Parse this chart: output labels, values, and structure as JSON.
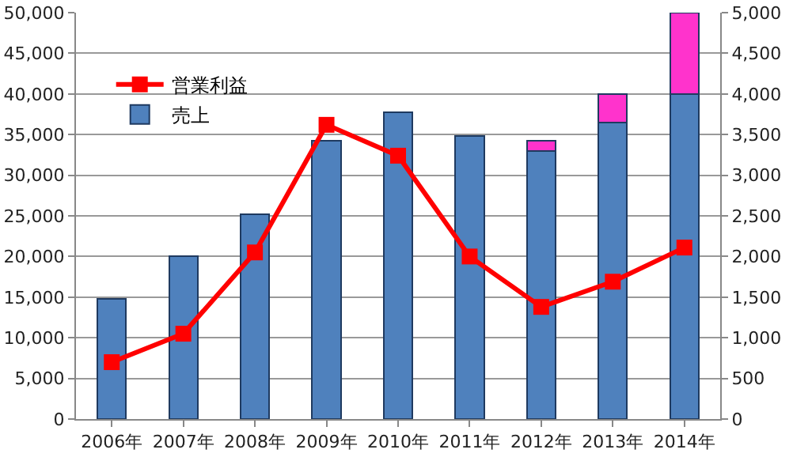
{
  "chart_data": {
    "type": "bar",
    "stacked": true,
    "categories": [
      "2006年",
      "2007年",
      "2008年",
      "2009年",
      "2010年",
      "2011年",
      "2012年",
      "2013年",
      "2014年"
    ],
    "series": [
      {
        "name": "売上",
        "color": "#4f81bd",
        "values": [
          14800,
          20000,
          25200,
          34200,
          37700,
          34800,
          33000,
          36500,
          40000
        ]
      },
      {
        "color": "#ff33cc",
        "values": [
          null,
          null,
          null,
          null,
          null,
          null,
          1200,
          3500,
          10000
        ]
      },
      {
        "name": "営業利益",
        "type": "line",
        "axis": "y2",
        "color": "#ff0000",
        "marker": "square",
        "line_style": "solid",
        "values": [
          700,
          1050,
          2050,
          3620,
          3240,
          2000,
          1380,
          1690,
          2110
        ]
      }
    ],
    "ylim": [
      0,
      50000
    ],
    "yticks": [
      {
        "value": 0,
        "label": "0"
      },
      {
        "value": 5000,
        "label": "5,000"
      },
      {
        "value": 10000,
        "label": "10,000"
      },
      {
        "value": 15000,
        "label": "15,000"
      },
      {
        "value": 20000,
        "label": "20,000"
      },
      {
        "value": 25000,
        "label": "25,000"
      },
      {
        "value": 30000,
        "label": "30,000"
      },
      {
        "value": 35000,
        "label": "35,000"
      },
      {
        "value": 40000,
        "label": "40,000"
      },
      {
        "value": 45000,
        "label": "45,000"
      },
      {
        "value": 50000,
        "label": "50,000"
      }
    ],
    "y2lim": [
      0,
      5000
    ],
    "y2ticks": [
      {
        "value": 0,
        "label": "0"
      },
      {
        "value": 500,
        "label": "500"
      },
      {
        "value": 1000,
        "label": "1,000"
      },
      {
        "value": 1500,
        "label": "1,500"
      },
      {
        "value": 2000,
        "label": "2,000"
      },
      {
        "value": 2500,
        "label": "2,500"
      },
      {
        "value": 3000,
        "label": "3,000"
      },
      {
        "value": 3500,
        "label": "3,500"
      },
      {
        "value": 4000,
        "label": "4,000"
      },
      {
        "value": 4500,
        "label": "4,500"
      },
      {
        "value": 5000,
        "label": "5,000"
      }
    ],
    "grid": "y",
    "legend": "top left"
  }
}
